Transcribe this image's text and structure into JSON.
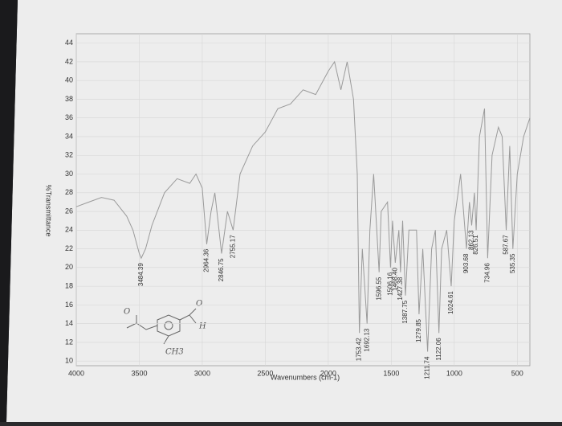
{
  "chart_data": {
    "type": "line",
    "ylabel": "%Transmittance",
    "xlabel": "Wavenumbers (cm-1)",
    "xlim": [
      4000,
      400
    ],
    "ylim": [
      9.5,
      45
    ],
    "xticks": [
      4000,
      3500,
      3000,
      2500,
      2000,
      1500,
      1000,
      500
    ],
    "yticks": [
      10,
      12,
      14,
      16,
      18,
      20,
      22,
      24,
      26,
      28,
      30,
      32,
      34,
      36,
      38,
      40,
      42,
      44
    ],
    "grid": true,
    "color": "#9a9a9a",
    "x": [
      4000,
      3900,
      3800,
      3700,
      3600,
      3550,
      3500,
      3484.39,
      3450,
      3400,
      3300,
      3200,
      3100,
      3050,
      3000,
      2964.36,
      2930,
      2900,
      2846.75,
      2800,
      2755.17,
      2700,
      2600,
      2500,
      2400,
      2300,
      2200,
      2100,
      2000,
      1950,
      1900,
      1850,
      1800,
      1770,
      1753.42,
      1730,
      1692.13,
      1670,
      1640,
      1596.55,
      1580,
      1530,
      1506.16,
      1490,
      1468.4,
      1440,
      1427.38,
      1410,
      1387.75,
      1360,
      1300,
      1279.85,
      1250,
      1211.74,
      1180,
      1150,
      1122.06,
      1100,
      1060,
      1024.61,
      1000,
      950,
      903.68,
      880,
      862.13,
      840,
      826.51,
      800,
      760,
      734.96,
      700,
      650,
      620,
      587.67,
      560,
      535.35,
      500,
      450,
      400
    ],
    "values": [
      26.5,
      27,
      27.5,
      27.2,
      25.5,
      24,
      21.5,
      21,
      22,
      24.5,
      28,
      29.5,
      29,
      30,
      28.5,
      22.5,
      26,
      28,
      21.5,
      26,
      24,
      30,
      33,
      34.5,
      37,
      37.5,
      39,
      38.5,
      41,
      42,
      39,
      42,
      38,
      30,
      13,
      22,
      14,
      24,
      30,
      19.5,
      26,
      27,
      20,
      25,
      20.5,
      24,
      19.5,
      25,
      17,
      24,
      24,
      15,
      22,
      11,
      22,
      24,
      13,
      22,
      24,
      18,
      25,
      30,
      22,
      27,
      24.5,
      28,
      24,
      34,
      37,
      21,
      32,
      35,
      34,
      24,
      33,
      22,
      30,
      34,
      36
    ],
    "peak_labels": [
      3484.39,
      2964.36,
      2846.75,
      2755.17,
      1753.42,
      1692.13,
      1596.55,
      1506.16,
      {
        "value": 1468.4,
        "label": "1468.40"
      },
      1427.38,
      1387.75,
      1279.85,
      1211.74,
      1122.06,
      1024.61,
      903.68,
      862.13,
      826.51,
      734.96,
      587.67,
      535.35
    ],
    "handwriting": [
      "O",
      "O",
      "H",
      "CH3"
    ]
  }
}
